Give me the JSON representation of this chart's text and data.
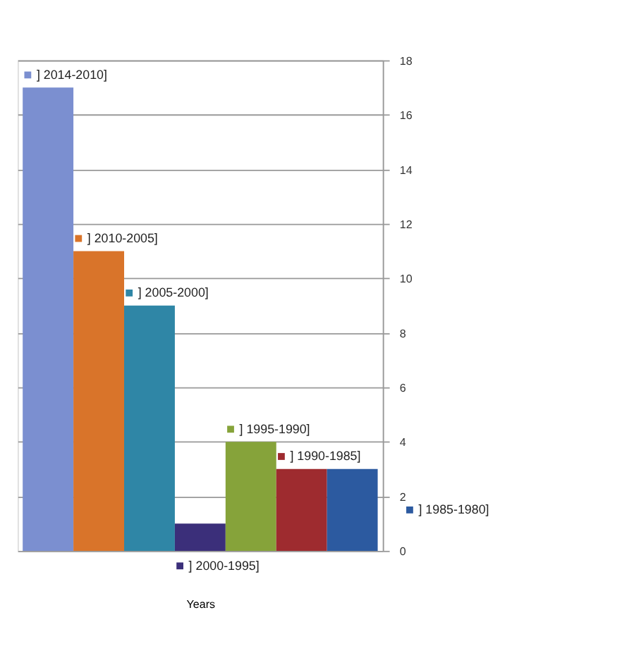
{
  "chart_data": {
    "type": "bar",
    "xlabel": "Years",
    "categories": [
      null
    ],
    "series": [
      {
        "name": "] 2014-2010]",
        "color": "#7b8fd0",
        "values": [
          17
        ]
      },
      {
        "name": "] 2010-2005]",
        "color": "#d9742a",
        "values": [
          11
        ]
      },
      {
        "name": "] 2005-2000]",
        "color": "#2f86a6",
        "values": [
          9
        ]
      },
      {
        "name": "] 2000-1995]",
        "color": "#3b2f7a",
        "values": [
          1
        ]
      },
      {
        "name": "] 1995-1990]",
        "color": "#86a33a",
        "values": [
          4
        ]
      },
      {
        "name": "] 1990-1985]",
        "color": "#9e2b2f",
        "values": [
          3
        ]
      },
      {
        "name": "] 1985-1980]",
        "color": "#2c5aa0",
        "values": [
          3
        ]
      }
    ],
    "ylim": [
      0,
      18
    ],
    "yticks": [
      0,
      2,
      4,
      6,
      8,
      10,
      12,
      14,
      16,
      18
    ],
    "grid": "y",
    "legend": "right",
    "tick_labels": "y"
  }
}
